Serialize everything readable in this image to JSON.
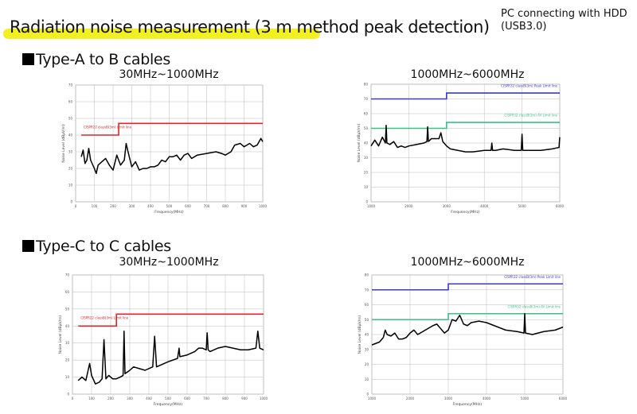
{
  "header": {
    "title": "Radiation noise measurement (3 m method peak detection)",
    "note_line1": "PC connecting with HDD",
    "note_line2": "(USB3.0)",
    "highlight_color": "#f3f021"
  },
  "sections": [
    {
      "label": "Type-A to B cables",
      "ranges": [
        "30MHz~1000MHz",
        "1000MHz~6000MHz"
      ]
    },
    {
      "label": "Type-C to C cables",
      "ranges": [
        "30MHz~1000MHz",
        "1000MHz~6000MHz"
      ]
    }
  ],
  "chart_data": [
    {
      "type": "line",
      "title": "30MHz~1000MHz",
      "xlabel": "Frequency(MHz)",
      "ylabel": "Noise Level (dBµV/m)",
      "xlim": [
        0,
        1000
      ],
      "ylim": [
        0,
        70
      ],
      "xticks": [
        0,
        100,
        200,
        300,
        400,
        500,
        600,
        700,
        800,
        900,
        1000
      ],
      "yticks": [
        0,
        10,
        20,
        30,
        40,
        50,
        60,
        70
      ],
      "grid": true,
      "limits": [
        {
          "name": "CISPR22 classB(3m) Limit line",
          "color": "#e0242a",
          "points": [
            [
              30,
              40
            ],
            [
              230,
              40
            ],
            [
              230,
              47
            ],
            [
              1000,
              47
            ]
          ]
        }
      ],
      "series": [
        {
          "color": "#000000",
          "x": [
            30,
            40,
            50,
            60,
            70,
            80,
            100,
            110,
            120,
            140,
            160,
            180,
            200,
            220,
            240,
            260,
            270,
            280,
            300,
            320,
            340,
            360,
            380,
            400,
            420,
            440,
            460,
            480,
            500,
            520,
            540,
            560,
            580,
            600,
            620,
            650,
            700,
            750,
            780,
            800,
            830,
            850,
            880,
            900,
            930,
            950,
            970,
            990,
            1000
          ],
          "y": [
            27,
            31,
            23,
            25,
            32,
            25,
            20,
            17,
            22,
            24,
            26,
            22,
            19,
            28,
            22,
            25,
            35,
            30,
            21,
            24,
            19,
            20,
            20,
            21,
            21,
            22,
            25,
            24,
            27,
            27,
            28,
            25,
            28,
            29,
            26,
            28,
            29,
            30,
            29,
            28,
            30,
            34,
            35,
            33,
            35,
            33,
            34,
            38,
            36
          ]
        }
      ]
    },
    {
      "type": "line",
      "title": "1000MHz~6000MHz",
      "xlabel": "Frequency(MHz)",
      "ylabel": "Noise Level (dBµV/m)",
      "xlim": [
        1000,
        6000
      ],
      "ylim": [
        0,
        80
      ],
      "xticks": [
        1000,
        2000,
        3000,
        4000,
        5000,
        6000
      ],
      "yticks": [
        0,
        10,
        20,
        30,
        40,
        50,
        60,
        70,
        80
      ],
      "grid": true,
      "limits": [
        {
          "name": "CISPR32 classB(3m) Peak Limit line",
          "color": "#3b3bbf",
          "points": [
            [
              1000,
              70
            ],
            [
              3000,
              70
            ],
            [
              3000,
              74
            ],
            [
              6000,
              74
            ]
          ]
        },
        {
          "name": "CISPR32 classB(3m) AV Limit line",
          "color": "#3cbf86",
          "points": [
            [
              1000,
              50
            ],
            [
              3000,
              50
            ],
            [
              3000,
              54
            ],
            [
              6000,
              54
            ]
          ]
        }
      ],
      "series": [
        {
          "color": "#000000",
          "x": [
            1000,
            1100,
            1200,
            1300,
            1380,
            1400,
            1420,
            1500,
            1600,
            1700,
            1800,
            1900,
            2000,
            2200,
            2400,
            2480,
            2500,
            2520,
            2600,
            2800,
            2850,
            2900,
            3000,
            3100,
            3300,
            3500,
            3700,
            4000,
            4180,
            4200,
            4220,
            4300,
            4500,
            4800,
            4980,
            5000,
            5020,
            5200,
            5500,
            5800,
            5980,
            6000
          ],
          "y": [
            38,
            42,
            38,
            44,
            40,
            52,
            40,
            39,
            41,
            37,
            38,
            37,
            38,
            39,
            40,
            41,
            51,
            41,
            43,
            43,
            47,
            41,
            38,
            36,
            35,
            34,
            34,
            35,
            35,
            40,
            35,
            35,
            36,
            35,
            35,
            46,
            35,
            35,
            35,
            36,
            37,
            44
          ]
        }
      ]
    },
    {
      "type": "line",
      "title": "30MHz~1000MHz",
      "xlabel": "Frequency(MHz)",
      "ylabel": "Noise Level (dBµV/m)",
      "xlim": [
        0,
        1000
      ],
      "ylim": [
        0,
        70
      ],
      "xticks": [
        0,
        100,
        200,
        300,
        400,
        500,
        600,
        700,
        800,
        900,
        1000
      ],
      "yticks": [
        0,
        10,
        20,
        30,
        40,
        50,
        60,
        70
      ],
      "grid": true,
      "limits": [
        {
          "name": "CISPR22 classB(3m) Limit line",
          "color": "#e0242a",
          "points": [
            [
              30,
              40
            ],
            [
              230,
              40
            ],
            [
              230,
              47
            ],
            [
              1000,
              47
            ]
          ]
        }
      ],
      "series": [
        {
          "color": "#000000",
          "x": [
            30,
            50,
            70,
            80,
            90,
            100,
            120,
            140,
            155,
            165,
            175,
            190,
            210,
            230,
            250,
            265,
            270,
            275,
            300,
            320,
            350,
            380,
            420,
            430,
            440,
            460,
            500,
            550,
            558,
            562,
            600,
            640,
            660,
            680,
            700,
            705,
            710,
            720,
            760,
            800,
            840,
            880,
            920,
            960,
            970,
            980,
            1000
          ],
          "y": [
            8,
            10,
            8,
            13,
            18,
            11,
            6,
            7,
            9,
            32,
            9,
            11,
            9,
            9,
            10,
            11,
            37,
            12,
            14,
            16,
            15,
            14,
            16,
            34,
            16,
            17,
            19,
            21,
            27,
            22,
            23,
            25,
            27,
            27,
            26,
            36,
            26,
            25,
            27,
            28,
            27,
            26,
            26,
            27,
            37,
            27,
            26
          ]
        }
      ]
    },
    {
      "type": "line",
      "title": "1000MHz~6000MHz",
      "xlabel": "Frequency(MHz)",
      "ylabel": "Noise Level (dBµV/m)",
      "xlim": [
        1000,
        6000
      ],
      "ylim": [
        0,
        80
      ],
      "xticks": [
        1000,
        2000,
        3000,
        4000,
        5000,
        6000
      ],
      "yticks": [
        0,
        10,
        20,
        30,
        40,
        50,
        60,
        70,
        80
      ],
      "grid": true,
      "limits": [
        {
          "name": "CISPR32 classB(3m) Peak Limit line",
          "color": "#3b3bbf",
          "points": [
            [
              1000,
              70
            ],
            [
              3000,
              70
            ],
            [
              3000,
              74
            ],
            [
              6000,
              74
            ]
          ]
        },
        {
          "name": "CISPR32 classB(3m) AV Limit line",
          "color": "#3cbf86",
          "points": [
            [
              1000,
              50
            ],
            [
              3000,
              50
            ],
            [
              3000,
              54
            ],
            [
              6000,
              54
            ]
          ]
        }
      ],
      "series": [
        {
          "color": "#000000",
          "x": [
            1000,
            1100,
            1200,
            1300,
            1350,
            1400,
            1500,
            1600,
            1700,
            1800,
            1900,
            2000,
            2100,
            2200,
            2400,
            2600,
            2700,
            2800,
            2900,
            3000,
            3100,
            3200,
            3300,
            3400,
            3500,
            3600,
            3800,
            4000,
            4200,
            4500,
            4800,
            4980,
            5000,
            5020,
            5200,
            5500,
            5800,
            6000
          ],
          "y": [
            33,
            34,
            35,
            38,
            43,
            40,
            39,
            41,
            37,
            37,
            38,
            41,
            43,
            40,
            43,
            46,
            47,
            44,
            41,
            43,
            50,
            49,
            53,
            47,
            46,
            48,
            49,
            48,
            46,
            43,
            42,
            41,
            54,
            41,
            40,
            42,
            43,
            45
          ]
        }
      ]
    }
  ]
}
